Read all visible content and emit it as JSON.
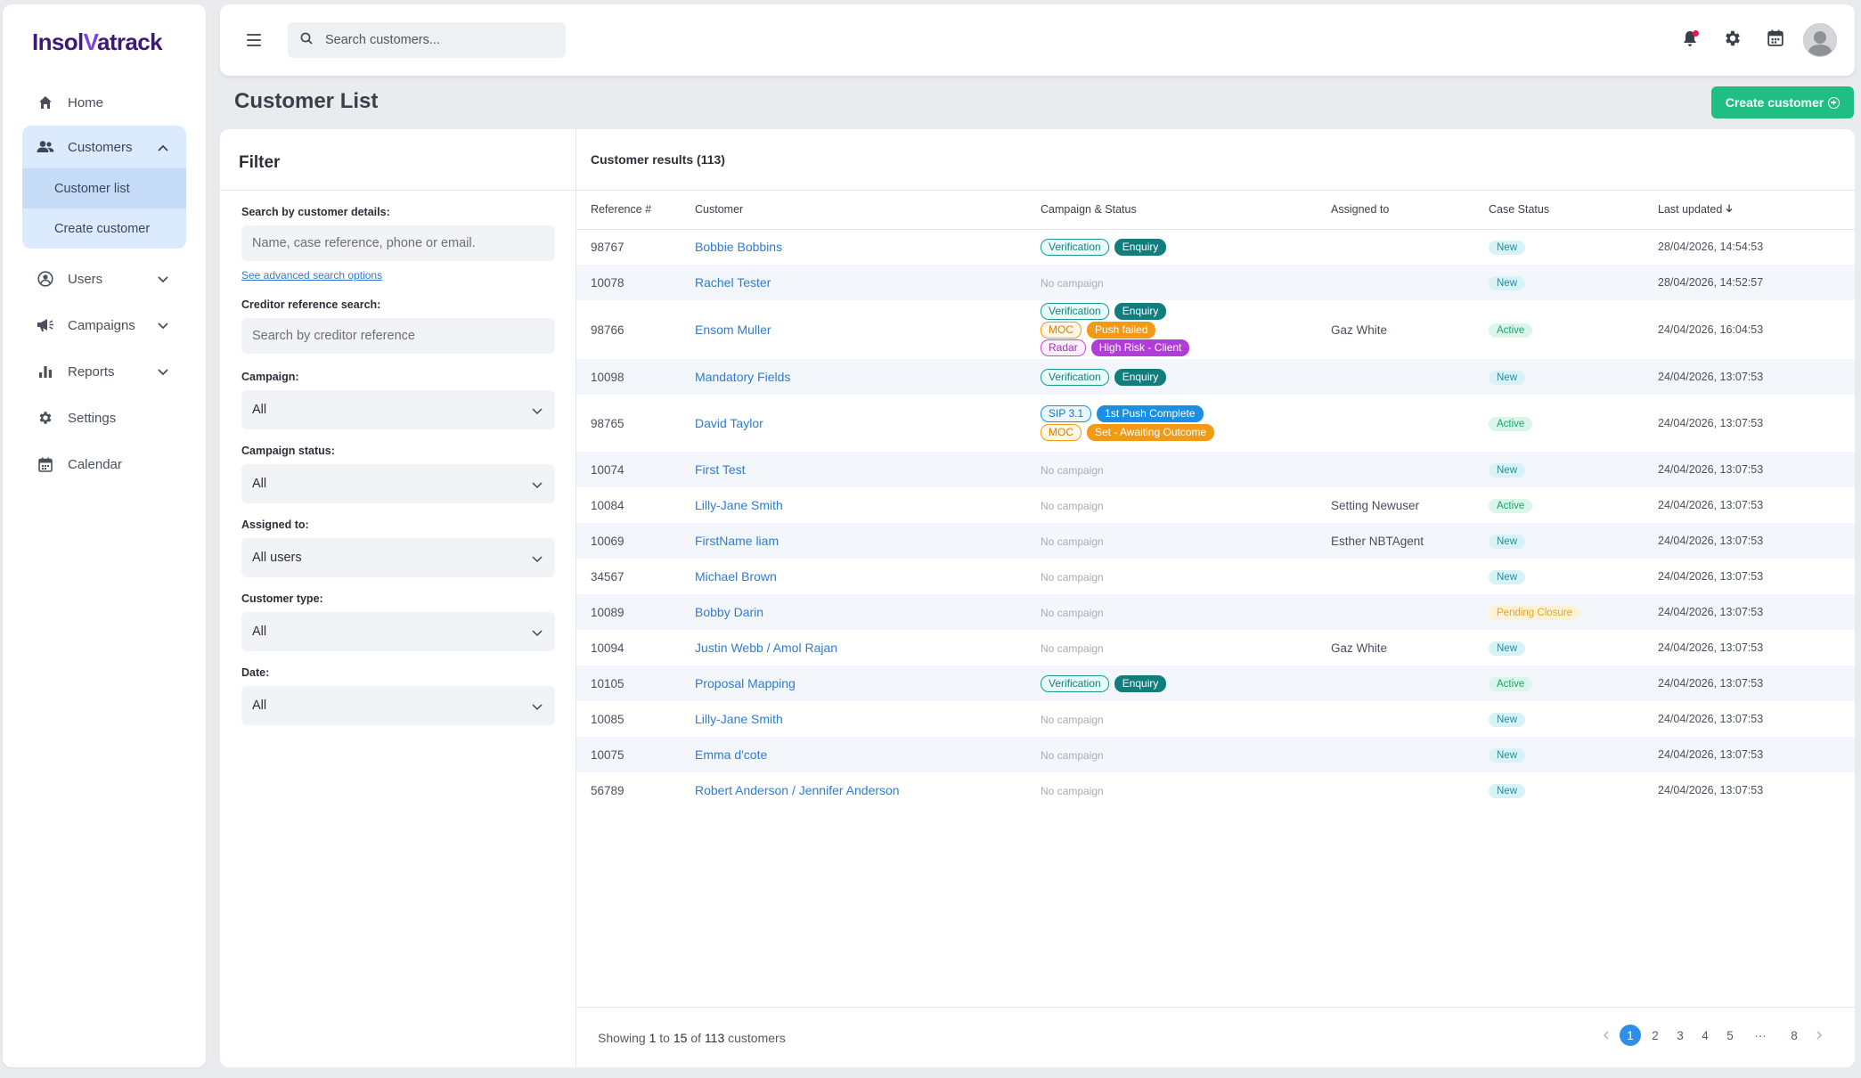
{
  "app": {
    "logo_pre": "Insol",
    "logo_v": "V",
    "logo_post": "atrack"
  },
  "sidebar": {
    "home": "Home",
    "customers": "Customers",
    "customer_list": "Customer list",
    "create_customer": "Create customer",
    "users": "Users",
    "campaigns": "Campaigns",
    "reports": "Reports",
    "settings": "Settings",
    "calendar": "Calendar"
  },
  "topbar": {
    "search_placeholder": "Search customers..."
  },
  "page": {
    "title": "Customer List",
    "create_button": "Create customer"
  },
  "filter": {
    "title": "Filter",
    "details_label": "Search by customer details:",
    "details_placeholder": "Name, case reference, phone or email.",
    "advanced_link": "See advanced search options",
    "creditor_label": "Creditor reference search:",
    "creditor_placeholder": "Search by creditor reference",
    "campaign_label": "Campaign:",
    "campaign_value": "All",
    "campaign_status_label": "Campaign status:",
    "campaign_status_value": "All",
    "assigned_label": "Assigned to:",
    "assigned_value": "All users",
    "type_label": "Customer type:",
    "type_value": "All",
    "date_label": "Date:",
    "date_value": "All"
  },
  "results": {
    "title": "Customer results (113)",
    "columns": {
      "ref": "Reference #",
      "customer": "Customer",
      "campaign": "Campaign & Status",
      "assigned": "Assigned to",
      "case_status": "Case Status",
      "updated": "Last updated"
    },
    "no_campaign": "No campaign",
    "rows": [
      {
        "ref": "98767",
        "name": "Bobbie Bobbins",
        "assigned": "",
        "status": "New",
        "updated": "28/04/2026, 14:54:53",
        "tags": [
          [
            "Verification",
            "Enquiry"
          ]
        ]
      },
      {
        "ref": "10078",
        "name": "Rachel Tester",
        "assigned": "",
        "status": "New",
        "updated": "28/04/2026, 14:52:57",
        "tags": []
      },
      {
        "ref": "98766",
        "name": "Ensom Muller",
        "assigned": "Gaz White",
        "status": "Active",
        "updated": "24/04/2026, 16:04:53",
        "tags": [
          [
            "Verification",
            "Enquiry"
          ],
          [
            "MOC",
            "Push failed"
          ],
          [
            "Radar",
            "High Risk - Client"
          ]
        ]
      },
      {
        "ref": "10098",
        "name": "Mandatory Fields",
        "assigned": "",
        "status": "New",
        "updated": "24/04/2026, 13:07:53",
        "tags": [
          [
            "Verification",
            "Enquiry"
          ]
        ]
      },
      {
        "ref": "98765",
        "name": "David Taylor",
        "assigned": "",
        "status": "Active",
        "updated": "24/04/2026, 13:07:53",
        "tags": [
          [
            "SIP 3.1",
            "1st Push Complete"
          ],
          [
            "MOC",
            "Set - Awaiting Outcome"
          ]
        ]
      },
      {
        "ref": "10074",
        "name": "First Test",
        "assigned": "",
        "status": "New",
        "updated": "24/04/2026, 13:07:53",
        "tags": []
      },
      {
        "ref": "10084",
        "name": "Lilly-Jane Smith",
        "assigned": "Setting Newuser",
        "status": "Active",
        "updated": "24/04/2026, 13:07:53",
        "tags": []
      },
      {
        "ref": "10069",
        "name": "FirstName liam",
        "assigned": "Esther NBTAgent",
        "status": "New",
        "updated": "24/04/2026, 13:07:53",
        "tags": []
      },
      {
        "ref": "34567",
        "name": "Michael Brown",
        "assigned": "",
        "status": "New",
        "updated": "24/04/2026, 13:07:53",
        "tags": []
      },
      {
        "ref": "10089",
        "name": "Bobby Darin",
        "assigned": "",
        "status": "Pending Closure",
        "updated": "24/04/2026, 13:07:53",
        "tags": []
      },
      {
        "ref": "10094",
        "name": "Justin Webb / Amol Rajan",
        "assigned": "Gaz White",
        "status": "New",
        "updated": "24/04/2026, 13:07:53",
        "tags": []
      },
      {
        "ref": "10105",
        "name": "Proposal Mapping",
        "assigned": "",
        "status": "Active",
        "updated": "24/04/2026, 13:07:53",
        "tags": [
          [
            "Verification",
            "Enquiry"
          ]
        ]
      },
      {
        "ref": "10085",
        "name": "Lilly-Jane Smith",
        "assigned": "",
        "status": "New",
        "updated": "24/04/2026, 13:07:53",
        "tags": []
      },
      {
        "ref": "10075",
        "name": "Emma d'cote",
        "assigned": "",
        "status": "New",
        "updated": "24/04/2026, 13:07:53",
        "tags": []
      },
      {
        "ref": "56789",
        "name": "Robert Anderson / Jennifer Anderson",
        "assigned": "",
        "status": "New",
        "updated": "24/04/2026, 13:07:53",
        "tags": []
      }
    ]
  },
  "footer": {
    "showing_pre": "Showing ",
    "from": "1",
    "to_word": " to ",
    "to": "15",
    "of_word": " of ",
    "total": "113",
    "post": " customers",
    "pages": [
      "1",
      "2",
      "3",
      "4",
      "5",
      "···",
      "8"
    ],
    "current_page": "1"
  },
  "colors": {
    "accent_green": "#1fbf83",
    "link_blue": "#2e7bd6",
    "brand_purple": "#3b1a78"
  }
}
